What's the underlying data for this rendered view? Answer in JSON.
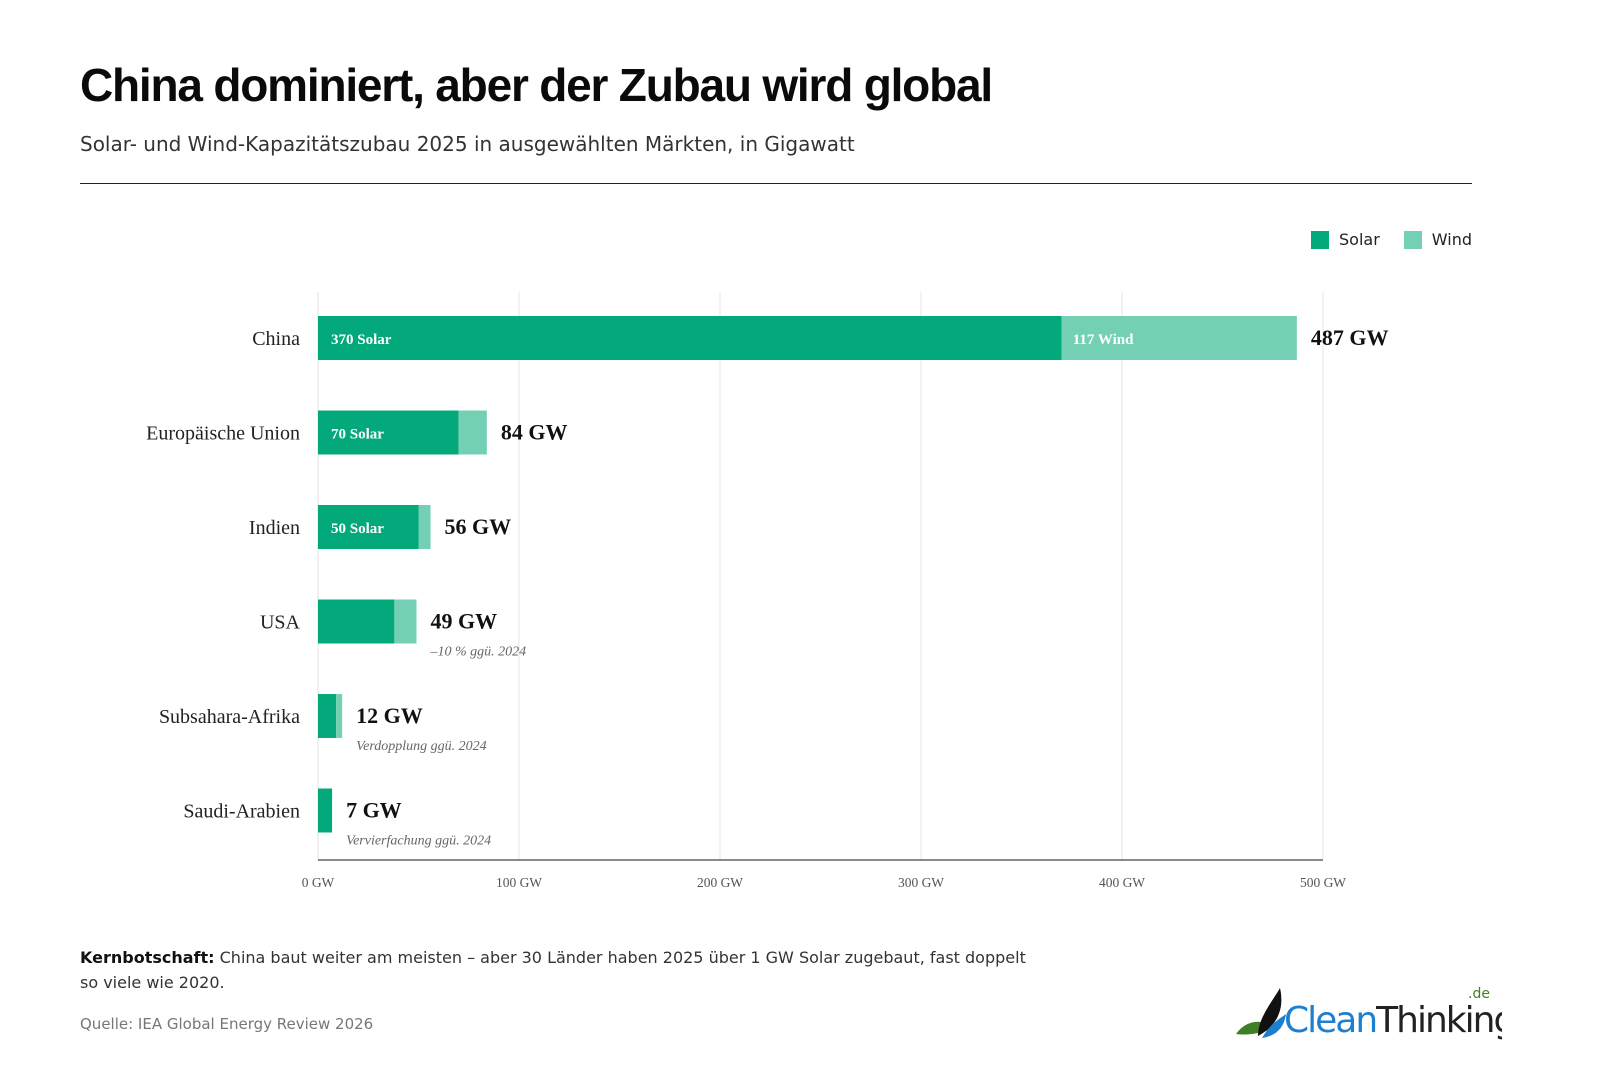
{
  "header": {
    "title": "China dominiert, aber der Zubau wird global",
    "subtitle": "Solar- und Wind-Kapazitätszubau 2025 in ausgewählten Märkten, in Gigawatt"
  },
  "legend": [
    {
      "name": "Solar",
      "color": "#04a97b"
    },
    {
      "name": "Wind",
      "color": "#74d0b4"
    }
  ],
  "chart_data": {
    "type": "bar",
    "orientation": "horizontal",
    "stacked": true,
    "categories": [
      "China",
      "Europäische Union",
      "Indien",
      "USA",
      "Subsahara-Afrika",
      "Saudi-Arabien"
    ],
    "series": [
      {
        "name": "Solar",
        "color": "#04a97b",
        "values": [
          370,
          70,
          50,
          38,
          9,
          7
        ]
      },
      {
        "name": "Wind",
        "color": "#74d0b4",
        "values": [
          117,
          14,
          6,
          11,
          3,
          0
        ]
      }
    ],
    "totals": [
      "487 GW",
      "84 GW",
      "56 GW",
      "49 GW",
      "12 GW",
      "7 GW"
    ],
    "segment_labels": [
      [
        "370 Solar",
        "117 Wind"
      ],
      [
        "70 Solar",
        ""
      ],
      [
        "50 Solar",
        ""
      ],
      [
        "",
        ""
      ],
      [
        "",
        ""
      ],
      [
        "",
        ""
      ]
    ],
    "annotations": [
      "",
      "",
      "",
      "–10 % ggü. 2024",
      "Verdopplung ggü. 2024",
      "Vervierfachung ggü. 2024"
    ],
    "xticks": [
      0,
      100,
      200,
      300,
      400,
      500
    ],
    "xtick_labels": [
      "0 GW",
      "100 GW",
      "200 GW",
      "300 GW",
      "400 GW",
      "500 GW"
    ],
    "xlim": [
      0,
      500
    ],
    "grid": "vertical",
    "legend_position": "top-right"
  },
  "footer": {
    "takeaway_label": "Kernbotschaft:",
    "takeaway_text": " China baut weiter am meisten – aber 30 Länder haben 2025 über 1 GW Solar zugebaut, fast doppelt so viele wie 2020.",
    "source": "Quelle: IEA Global Energy Review 2026",
    "logo_text": "CleanThinking",
    "logo_suffix": ".de"
  }
}
